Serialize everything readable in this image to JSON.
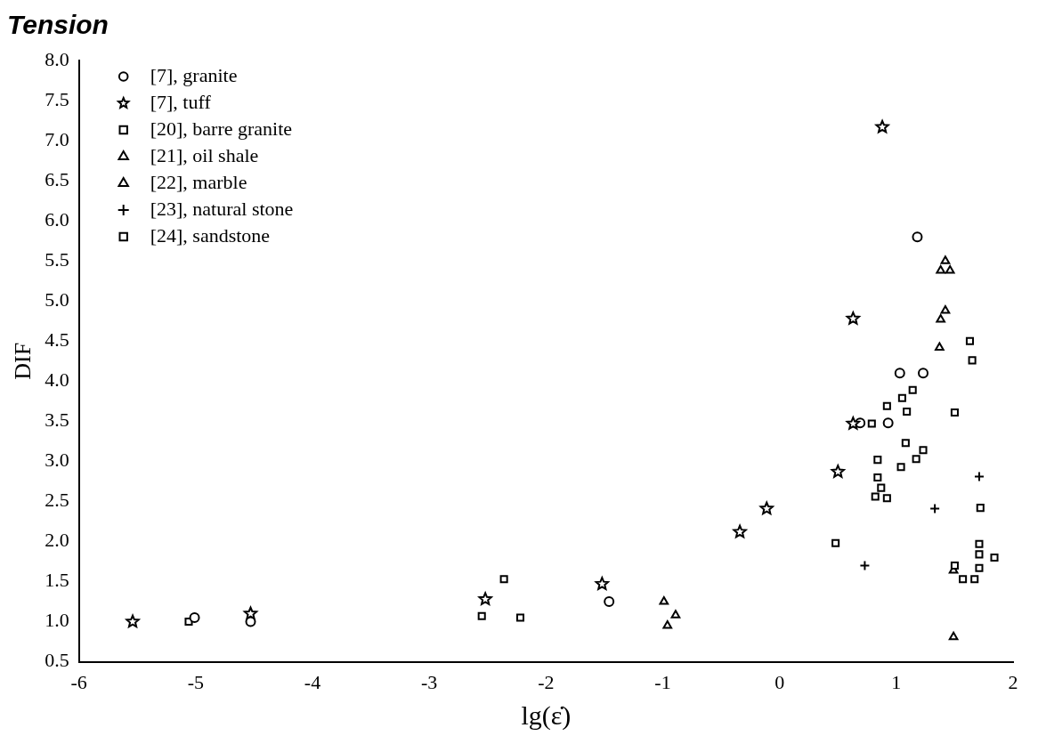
{
  "chart_data": {
    "type": "scatter",
    "title": "Tension",
    "xlabel": "lg(ε̇)",
    "ylabel": "DIF",
    "xlim": [
      -6,
      2
    ],
    "xticks": [
      -6,
      -5,
      -4,
      -3,
      -2,
      -1,
      0,
      1,
      2
    ],
    "ylim": [
      0.5,
      8.0
    ],
    "yticks": [
      0.5,
      {
        "value": 1,
        "label": "1.0"
      },
      1.5,
      {
        "value": 2,
        "label": "2.0"
      },
      2.5,
      {
        "value": 3,
        "label": "3.0"
      },
      3.5,
      {
        "value": 4,
        "label": "4.0"
      },
      4.5,
      {
        "value": 5,
        "label": "5.0"
      },
      5.5,
      {
        "value": 6,
        "label": "6.0"
      },
      6.5,
      {
        "value": 7,
        "label": "7.0"
      },
      7.5,
      {
        "value": 8,
        "label": "8.0"
      }
    ],
    "grid": false,
    "legend": "top left",
    "series": [
      {
        "name": "[7], granite",
        "color": "#000000",
        "marker": "circle",
        "x": [
          -5.01,
          -4.53,
          -1.46,
          0.69,
          0.93,
          1.03,
          1.23,
          1.18
        ],
        "values": [
          1.05,
          1.0,
          1.25,
          3.48,
          3.48,
          4.1,
          4.1,
          5.8
        ]
      },
      {
        "name": "[7], tuff",
        "color": "#000000",
        "marker": "star",
        "x": [
          -5.54,
          -4.53,
          -2.52,
          -1.52,
          -0.34,
          -0.11,
          0.5,
          0.63,
          0.63,
          0.88
        ],
        "values": [
          1.0,
          1.1,
          1.28,
          1.47,
          2.12,
          2.41,
          2.87,
          3.47,
          4.78,
          7.17
        ]
      },
      {
        "name": "[20], barre granite",
        "color": "#000000",
        "marker": "square",
        "x": [
          -5.06,
          -2.55,
          -2.52,
          -2.36,
          -2.22,
          1.5,
          1.57,
          1.67,
          1.71,
          1.71,
          1.84,
          1.71,
          1.72
        ],
        "values": [
          1.0,
          1.07,
          null,
          1.53,
          1.05,
          1.7,
          1.53,
          1.53,
          1.67,
          1.84,
          1.8,
          1.97,
          2.42
        ]
      },
      {
        "name": "[21], oil shale",
        "color": "#000000",
        "marker": "triangle",
        "x": [
          1.49,
          1.49
        ],
        "values": [
          1.64,
          0.81
        ]
      },
      {
        "name": "[22], marble",
        "color": "#000000",
        "marker": "triangle",
        "x": [
          -0.89,
          -0.96,
          1.37,
          1.38,
          1.42,
          1.38,
          1.46,
          1.42
        ],
        "values": [
          1.08,
          0.95,
          4.42,
          4.77,
          4.88,
          5.38,
          5.38,
          5.5
        ]
      },
      {
        "name": "[23], natural stone",
        "color": "#000000",
        "marker": "cross",
        "x": [
          0.73,
          1.33,
          1.71
        ],
        "values": [
          1.7,
          2.41,
          2.81
        ]
      },
      {
        "name": "[24], sandstone",
        "color": "#000000",
        "marker": "square",
        "x": [
          0.48,
          0.82,
          0.92,
          0.87,
          0.84,
          0.84,
          1.04,
          1.17,
          1.23,
          1.08,
          0.79,
          0.92,
          1.09,
          1.05,
          1.14,
          1.5,
          1.63,
          1.65
        ],
        "values": [
          1.98,
          2.56,
          2.54,
          2.67,
          2.8,
          3.02,
          2.93,
          3.03,
          3.14,
          3.23,
          3.47,
          3.69,
          3.62,
          3.79,
          3.89,
          3.61,
          4.5,
          4.26
        ]
      },
      {
        "color": "#000000",
        "marker": "triangle",
        "x": [
          -0.99
        ],
        "values": [
          1.25
        ]
      }
    ]
  }
}
